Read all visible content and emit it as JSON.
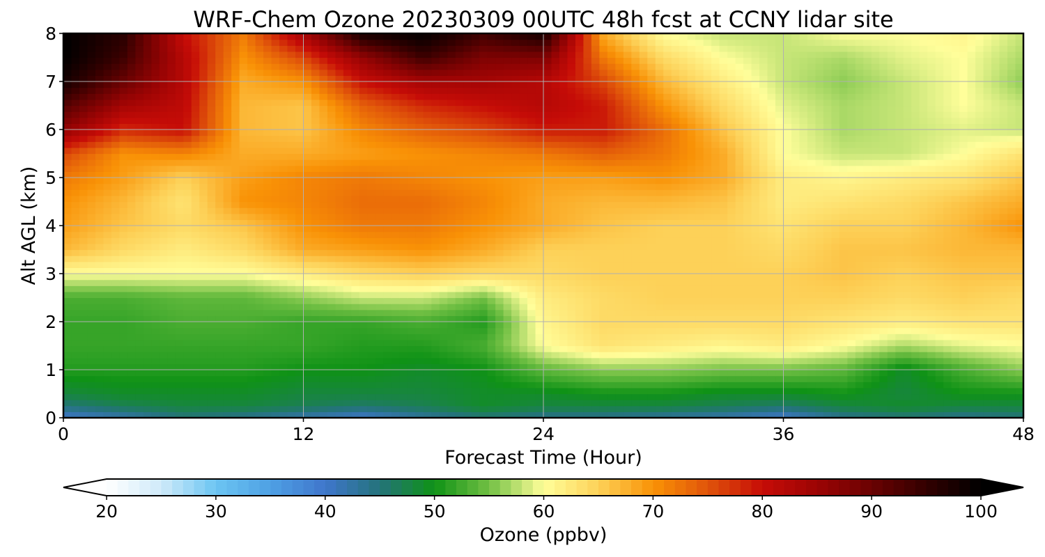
{
  "chart_data": {
    "type": "heatmap",
    "title": "WRF-Chem Ozone  20230309 00UTC 48h fcst at CCNY lidar site",
    "xlabel": "Forecast Time (Hour)",
    "ylabel": "Alt AGL (km)",
    "xlim": [
      0,
      48
    ],
    "ylim": [
      0,
      8
    ],
    "xticks": [
      0,
      12,
      24,
      36,
      48
    ],
    "yticks": [
      0,
      1,
      2,
      3,
      4,
      5,
      6,
      7,
      8
    ],
    "grid": true,
    "x": [
      0,
      3,
      6,
      9,
      12,
      15,
      18,
      21,
      24,
      27,
      30,
      33,
      36,
      39,
      42,
      45,
      48
    ],
    "y": [
      0,
      0.25,
      0.5,
      1,
      1.5,
      2,
      2.5,
      3,
      3.5,
      4,
      4.5,
      5,
      5.5,
      6,
      6.5,
      7,
      7.5,
      8
    ],
    "z": [
      [
        40,
        42,
        45,
        44,
        42,
        40,
        43,
        45,
        44,
        44,
        43,
        42,
        40,
        44,
        45,
        44,
        45
      ],
      [
        45,
        47,
        48,
        48,
        47,
        46,
        47,
        49,
        48,
        48,
        48,
        47,
        46,
        48,
        49,
        48,
        48
      ],
      [
        48,
        49,
        49,
        49,
        48,
        48,
        48,
        49,
        49,
        50,
        50,
        49,
        49,
        50,
        48,
        50,
        50
      ],
      [
        51,
        51,
        51,
        51,
        50,
        50,
        49,
        50,
        54,
        56,
        56,
        55,
        55,
        54,
        49,
        53,
        56
      ],
      [
        52,
        52,
        52,
        52,
        52,
        51,
        51,
        53,
        60,
        63,
        62,
        61,
        62,
        60,
        57,
        59,
        60
      ],
      [
        52,
        52,
        53,
        53,
        52,
        52,
        53,
        51,
        61,
        64,
        64,
        64,
        64,
        63,
        62,
        63,
        63
      ],
      [
        53,
        53,
        54,
        54,
        56,
        58,
        58,
        55,
        62,
        64,
        65,
        65,
        65,
        65,
        64,
        65,
        64
      ],
      [
        60,
        60,
        60,
        60,
        62,
        64,
        65,
        64,
        64,
        65,
        65,
        65,
        65,
        66,
        65,
        66,
        66
      ],
      [
        67,
        64,
        62,
        64,
        68,
        69,
        70,
        68,
        65,
        65,
        65,
        65,
        64,
        66,
        66,
        67,
        67
      ],
      [
        69,
        66,
        64,
        66,
        70,
        72,
        72,
        70,
        68,
        66,
        65,
        65,
        63,
        65,
        65,
        67,
        70
      ],
      [
        70,
        67,
        63,
        70,
        71,
        73,
        73,
        71,
        68,
        67,
        67,
        66,
        62,
        63,
        64,
        66,
        68
      ],
      [
        72,
        69,
        65,
        69,
        71,
        72,
        71,
        70,
        69,
        69,
        70,
        68,
        62,
        61,
        62,
        63,
        66
      ],
      [
        76,
        70,
        71,
        68,
        68,
        69,
        70,
        71,
        72,
        74,
        72,
        68,
        60,
        58,
        58,
        60,
        63
      ],
      [
        86,
        78,
        80,
        67,
        66,
        71,
        74,
        76,
        79,
        79,
        73,
        66,
        60,
        57,
        58,
        59,
        58
      ],
      [
        92,
        84,
        81,
        67,
        66,
        74,
        78,
        80,
        82,
        79,
        70,
        64,
        59,
        57,
        58,
        60,
        58
      ],
      [
        98,
        90,
        82,
        68,
        70,
        80,
        84,
        84,
        82,
        76,
        67,
        62,
        58,
        56,
        58,
        60,
        56
      ],
      [
        100,
        94,
        82,
        70,
        76,
        86,
        94,
        88,
        88,
        72,
        64,
        60,
        58,
        57,
        59,
        60,
        57
      ],
      [
        100,
        96,
        80,
        72,
        84,
        98,
        100,
        94,
        98,
        68,
        60,
        58,
        58,
        60,
        60,
        61,
        58
      ]
    ],
    "colorbar": {
      "label": "Ozone  (ppbv)",
      "min": 20,
      "max": 100,
      "ticks": [
        20,
        30,
        40,
        50,
        60,
        70,
        80,
        90,
        100
      ],
      "extend": "both",
      "stops": [
        {
          "v": 20,
          "c": "#ffffff"
        },
        {
          "v": 25,
          "c": "#cfeaf9"
        },
        {
          "v": 30,
          "c": "#6cc5f2"
        },
        {
          "v": 35,
          "c": "#4ea0e4"
        },
        {
          "v": 40,
          "c": "#3f76cc"
        },
        {
          "v": 45,
          "c": "#24737a"
        },
        {
          "v": 50,
          "c": "#0f9216"
        },
        {
          "v": 55,
          "c": "#72c044"
        },
        {
          "v": 60,
          "c": "#fffe9a"
        },
        {
          "v": 65,
          "c": "#fdd158"
        },
        {
          "v": 70,
          "c": "#f99206"
        },
        {
          "v": 75,
          "c": "#e0540a"
        },
        {
          "v": 80,
          "c": "#c60c07"
        },
        {
          "v": 85,
          "c": "#9c0404"
        },
        {
          "v": 90,
          "c": "#6a0202"
        },
        {
          "v": 95,
          "c": "#320000"
        },
        {
          "v": 100,
          "c": "#000000"
        }
      ]
    }
  }
}
